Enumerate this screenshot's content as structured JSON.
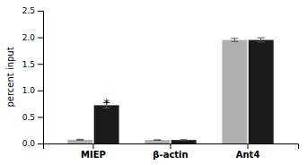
{
  "chart_data": {
    "type": "bar",
    "categories": [
      "MIEP",
      "β-actin",
      "Ant4"
    ],
    "series": [
      {
        "color": "#b0b0b0",
        "values": [
          0.07,
          0.065,
          1.95
        ],
        "errors": [
          0.008,
          0.005,
          0.03
        ]
      },
      {
        "color": "#1a1a1a",
        "values": [
          0.72,
          0.065,
          1.95
        ],
        "errors": [
          0.05,
          0.008,
          0.04
        ]
      }
    ],
    "ylabel": "percent input",
    "ylim": [
      0,
      2.5
    ],
    "yticks": [
      {
        "value": 0.0,
        "label": "0.0"
      },
      0.5,
      {
        "value": 1.0,
        "label": "1.0"
      },
      1.5,
      {
        "value": 2.0,
        "label": "2.0"
      },
      2.5
    ],
    "annotations": [
      {
        "text": "*",
        "category": "MIEP",
        "y": 0.82
      }
    ],
    "grid": false
  }
}
